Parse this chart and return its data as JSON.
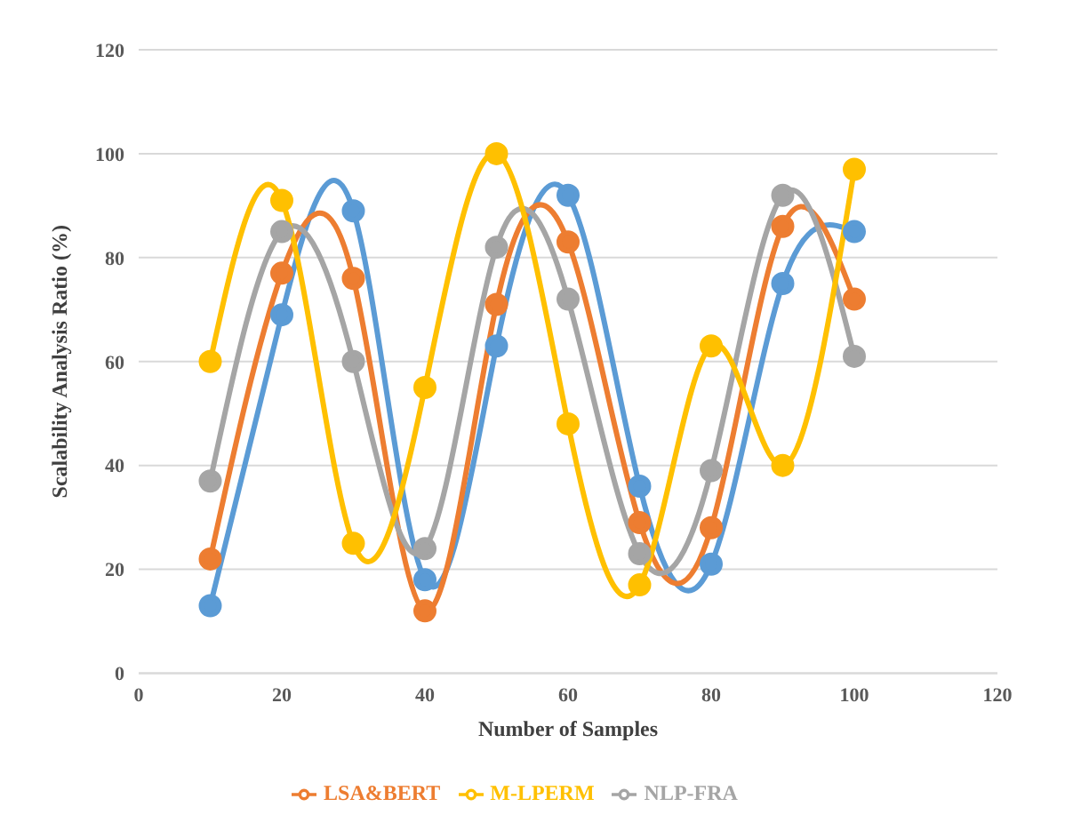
{
  "chart_data": {
    "type": "line",
    "xlabel": "Number of Samples",
    "ylabel": "Scalability Analysis Ratio (%)",
    "x": [
      10,
      20,
      30,
      40,
      50,
      60,
      70,
      80,
      90,
      100
    ],
    "series": [
      {
        "color": "#5b9bd5",
        "values": [
          13,
          69,
          89,
          18,
          63,
          92,
          36,
          21,
          75,
          85
        ]
      },
      {
        "name": "LSA&BERT",
        "color": "#ed7d31",
        "values": [
          22,
          77,
          76,
          12,
          71,
          83,
          29,
          28,
          86,
          72
        ]
      },
      {
        "name": "NLP-FRA",
        "color": "#a5a5a5",
        "values": [
          37,
          85,
          60,
          24,
          82,
          72,
          23,
          39,
          92,
          61
        ]
      },
      {
        "name": "M-LPERM",
        "color": "#ffc000",
        "values": [
          60,
          91,
          25,
          55,
          100,
          48,
          17,
          63,
          40,
          97
        ]
      }
    ],
    "xlim": [
      0,
      120
    ],
    "xticks": [
      0,
      20,
      40,
      60,
      80,
      100,
      120
    ],
    "ylim": [
      0,
      120
    ],
    "yticks": [
      0,
      20,
      40,
      60,
      80,
      100,
      120
    ],
    "grid": "y",
    "legend": "bottom",
    "marker": "circle",
    "line_style": "solid"
  }
}
